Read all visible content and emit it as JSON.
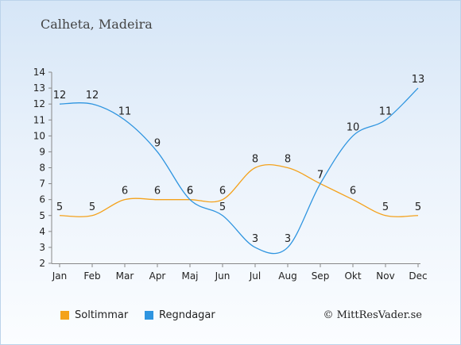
{
  "header": {
    "title": "Calheta, Madeira"
  },
  "footer": {
    "copyright": "© MittResVader.se"
  },
  "chart_data": {
    "type": "line",
    "categories": [
      "Jan",
      "Feb",
      "Mar",
      "Apr",
      "Maj",
      "Jun",
      "Jul",
      "Aug",
      "Sep",
      "Okt",
      "Nov",
      "Dec"
    ],
    "series": [
      {
        "name": "Soltimmar",
        "color": "#f4a21c",
        "values": [
          5,
          5,
          6,
          6,
          6,
          6,
          8,
          8,
          7,
          6,
          5,
          5
        ]
      },
      {
        "name": "Regndagar",
        "color": "#2f95e0",
        "values": [
          12,
          12,
          11,
          9,
          6,
          5,
          3,
          3,
          7,
          10,
          11,
          13
        ]
      }
    ],
    "ylim": [
      2,
      14
    ],
    "yticks": [
      2,
      3,
      4,
      5,
      6,
      7,
      8,
      9,
      10,
      11,
      12,
      13,
      14
    ],
    "grid": false,
    "legend": "bottom-left",
    "xlabel": "",
    "ylabel": ""
  }
}
